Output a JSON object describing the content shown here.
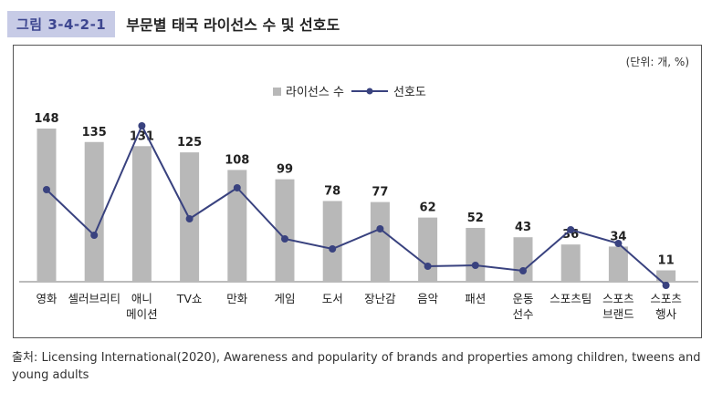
{
  "figure": {
    "label": "그림 3-4-2-1",
    "title": "부문별 태국 라이선스 수 및 선호도"
  },
  "chart_data": {
    "type": "bar",
    "unit_note": "(단위: 개, %)",
    "categories": [
      [
        "영화"
      ],
      [
        "셀러브리티"
      ],
      [
        "애니",
        "메이션"
      ],
      [
        "TV쇼"
      ],
      [
        "만화"
      ],
      [
        "게임"
      ],
      [
        "도서"
      ],
      [
        "장난감"
      ],
      [
        "음악"
      ],
      [
        "패션"
      ],
      [
        "운동",
        "선수"
      ],
      [
        "스포츠팀"
      ],
      [
        "스포츠",
        "브랜드"
      ],
      [
        "스포츠",
        "행사"
      ]
    ],
    "series": [
      {
        "name": "라이선스 수",
        "type": "bar",
        "color": "#b8b8b8",
        "values": [
          148,
          135,
          131,
          125,
          108,
          99,
          78,
          77,
          62,
          52,
          43,
          36,
          34,
          11
        ]
      },
      {
        "name": "선호도",
        "type": "line",
        "color": "#39427f",
        "values": [
          100,
          50,
          170,
          68,
          102,
          46,
          35,
          57,
          16,
          17,
          11,
          56,
          41,
          -5
        ]
      }
    ],
    "legend_position": "top-center",
    "grid": false
  },
  "source": {
    "label": "출처:",
    "text": "Licensing International(2020), Awareness and popularity of brands and properties among children, tweens and young adults"
  }
}
